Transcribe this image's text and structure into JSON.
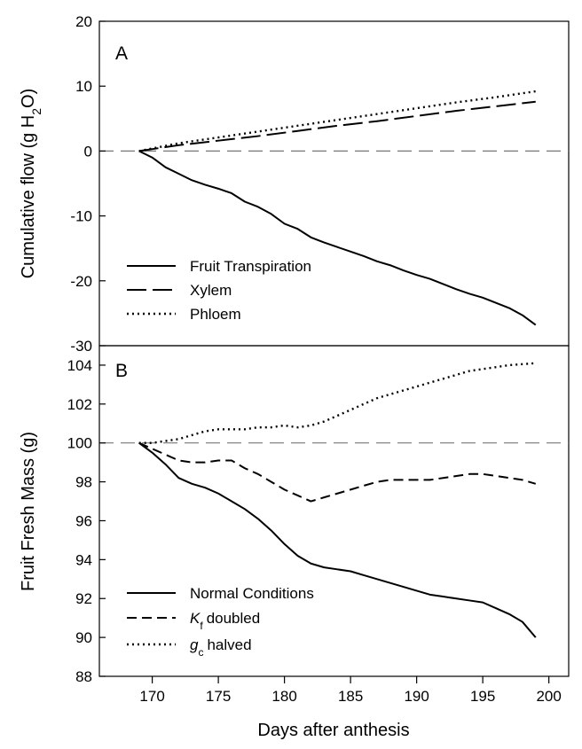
{
  "chart_data": [
    {
      "type": "line",
      "panel_label": "A",
      "ylabel_prefix": "Cumulative flow (g H",
      "ylabel_sub": "2",
      "ylabel_suffix": "O)",
      "ylim": [
        -30,
        20
      ],
      "yticks": [
        "20",
        "10",
        "0",
        "-10",
        "-20",
        "-30"
      ],
      "ytick_values": [
        20,
        10,
        0,
        -10,
        -20,
        -30
      ],
      "reference_line": 0,
      "legend_position": "bottom-left",
      "series": [
        {
          "name": "Fruit Transpiration",
          "style": "solid",
          "x": [
            169,
            170,
            171,
            172,
            173,
            174,
            175,
            176,
            177,
            178,
            179,
            180,
            181,
            182,
            183,
            184,
            185,
            186,
            187,
            188,
            189,
            190,
            191,
            192,
            193,
            194,
            195,
            196,
            197,
            198,
            199
          ],
          "y": [
            0,
            -1.0,
            -2.5,
            -3.5,
            -4.5,
            -5.2,
            -5.8,
            -6.5,
            -7.8,
            -8.6,
            -9.7,
            -11.2,
            -12.0,
            -13.3,
            -14.1,
            -14.8,
            -15.5,
            -16.2,
            -17.0,
            -17.6,
            -18.4,
            -19.1,
            -19.7,
            -20.5,
            -21.3,
            -22.0,
            -22.6,
            -23.4,
            -24.2,
            -25.3,
            -26.8
          ]
        },
        {
          "name": "Xylem",
          "style": "dashed",
          "x": [
            169,
            172,
            175,
            178,
            181,
            184,
            187,
            190,
            193,
            196,
            199
          ],
          "y": [
            0,
            0.9,
            1.6,
            2.3,
            3.1,
            3.9,
            4.6,
            5.4,
            6.2,
            6.9,
            7.6
          ]
        },
        {
          "name": "Phloem",
          "style": "dotted",
          "x": [
            169,
            172,
            175,
            178,
            181,
            184,
            187,
            190,
            193,
            196,
            199
          ],
          "y": [
            0,
            1.2,
            2.1,
            3.0,
            3.9,
            4.8,
            5.7,
            6.6,
            7.5,
            8.3,
            9.2
          ]
        }
      ]
    },
    {
      "type": "line",
      "panel_label": "B",
      "ylabel": "Fruit Fresh Mass (g)",
      "xlabel": "Days after anthesis",
      "ylim": [
        88,
        105
      ],
      "yticks": [
        "104",
        "102",
        "100",
        "98",
        "96",
        "94",
        "92",
        "90",
        "88"
      ],
      "ytick_values": [
        104,
        102,
        100,
        98,
        96,
        94,
        92,
        90,
        88
      ],
      "xlim": [
        166,
        201.5
      ],
      "xticks": [
        "170",
        "175",
        "180",
        "185",
        "190",
        "195",
        "200"
      ],
      "xtick_values": [
        170,
        175,
        180,
        185,
        190,
        195,
        200
      ],
      "reference_line": 100,
      "legend_position": "bottom-left",
      "series": [
        {
          "name": "Normal Conditions",
          "style": "solid",
          "x": [
            169,
            170,
            171,
            172,
            173,
            174,
            175,
            176,
            177,
            178,
            179,
            180,
            181,
            182,
            183,
            184,
            185,
            186,
            187,
            188,
            189,
            190,
            191,
            192,
            193,
            194,
            195,
            196,
            197,
            198,
            199
          ],
          "y": [
            100,
            99.5,
            98.9,
            98.2,
            97.9,
            97.7,
            97.4,
            97.0,
            96.6,
            96.1,
            95.5,
            94.8,
            94.2,
            93.8,
            93.6,
            93.5,
            93.4,
            93.2,
            93.0,
            92.8,
            92.6,
            92.4,
            92.2,
            92.1,
            92.0,
            91.9,
            91.8,
            91.5,
            91.2,
            90.8,
            90.0
          ]
        },
        {
          "name": "doubled",
          "name_italic": "K",
          "name_sub": "f",
          "style": "dashed",
          "x": [
            169,
            170,
            171,
            172,
            173,
            174,
            175,
            176,
            177,
            178,
            179,
            180,
            181,
            182,
            183,
            184,
            185,
            186,
            187,
            188,
            189,
            190,
            191,
            192,
            193,
            194,
            195,
            196,
            197,
            198,
            199
          ],
          "y": [
            100,
            99.7,
            99.4,
            99.1,
            99.0,
            99.0,
            99.1,
            99.1,
            98.7,
            98.4,
            98.0,
            97.6,
            97.3,
            97.0,
            97.2,
            97.4,
            97.6,
            97.8,
            98.0,
            98.1,
            98.1,
            98.1,
            98.1,
            98.2,
            98.3,
            98.4,
            98.4,
            98.3,
            98.2,
            98.1,
            97.9
          ]
        },
        {
          "name": "halved",
          "name_italic": "g",
          "name_sub": "c",
          "style": "dotted",
          "x": [
            169,
            170,
            171,
            172,
            173,
            174,
            175,
            176,
            177,
            178,
            179,
            180,
            181,
            182,
            183,
            184,
            185,
            186,
            187,
            188,
            189,
            190,
            191,
            192,
            193,
            194,
            195,
            196,
            197,
            198,
            199
          ],
          "y": [
            100,
            100.0,
            100.1,
            100.2,
            100.4,
            100.6,
            100.7,
            100.7,
            100.7,
            100.8,
            100.8,
            100.9,
            100.8,
            100.9,
            101.1,
            101.4,
            101.7,
            102.0,
            102.3,
            102.5,
            102.7,
            102.9,
            103.1,
            103.3,
            103.5,
            103.7,
            103.8,
            103.9,
            104.0,
            104.05,
            104.1
          ]
        }
      ]
    }
  ]
}
